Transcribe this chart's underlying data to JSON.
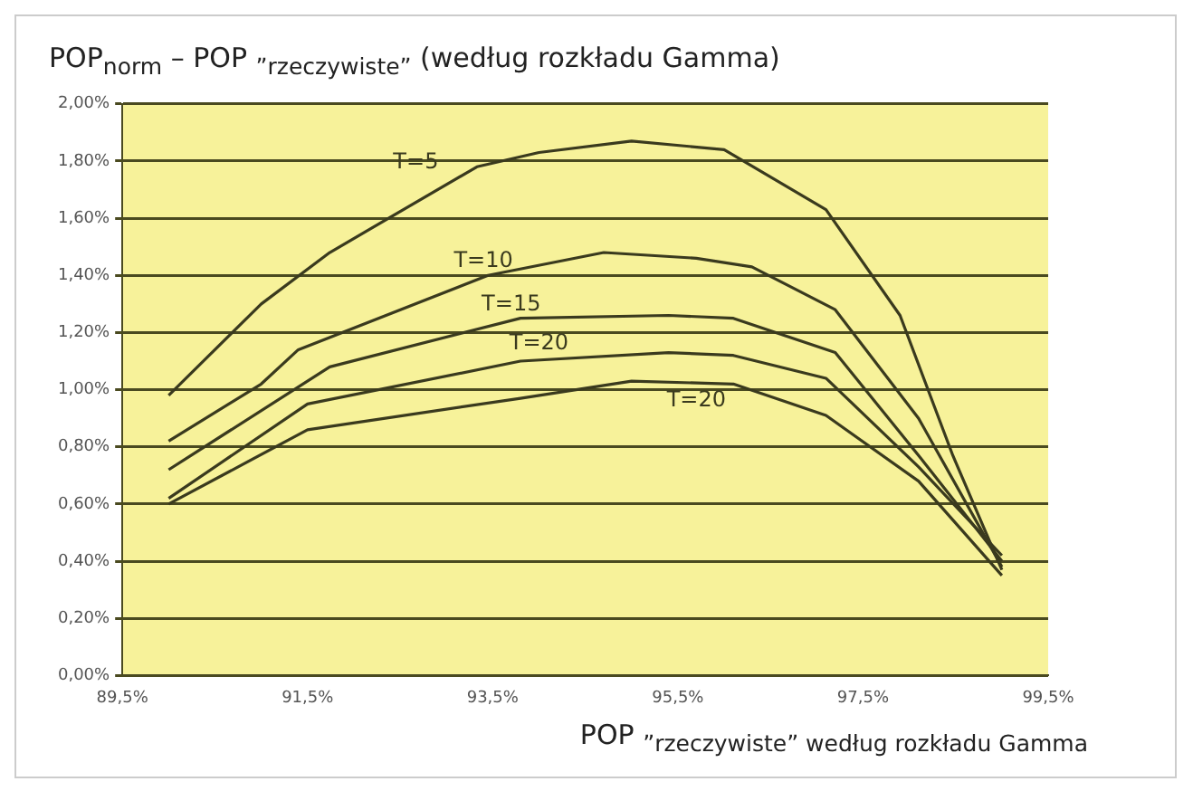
{
  "chart_data": {
    "type": "line",
    "title": "POP$_{norm}$ – POP $_{”rzeczywiste”}$ (według rozkładu Gamma)",
    "xlabel": "POP $_{”rzeczywiste” według rozkładu Gamma}$",
    "xlim": [
      89.5,
      99.5
    ],
    "xticks": [
      {
        "value": 89.5,
        "label": "89,5%"
      },
      {
        "value": 91.5,
        "label": "91,5%"
      },
      {
        "value": 93.5,
        "label": "93,5%"
      },
      {
        "value": 95.5,
        "label": "95,5%"
      },
      {
        "value": 97.5,
        "label": "97,5%"
      },
      {
        "value": 99.5,
        "label": "99,5%"
      }
    ],
    "ylim": [
      0,
      2
    ],
    "yticks": [
      {
        "value": 0,
        "label": "0,00%"
      },
      {
        "value": 0.2,
        "label": "0,20%"
      },
      {
        "value": 0.4,
        "label": "0,40%"
      },
      {
        "value": 0.6,
        "label": "0,60%"
      },
      {
        "value": 0.8,
        "label": "0,80%"
      },
      {
        "value": 1,
        "label": "1,00%"
      },
      {
        "value": 1.2,
        "label": "1,20%"
      },
      {
        "value": 1.4,
        "label": "1,40%"
      },
      {
        "value": 1.6,
        "label": "1,60%"
      },
      {
        "value": 1.8,
        "label": "1,80%"
      },
      {
        "value": 2,
        "label": "2,00%"
      }
    ],
    "grid": "y",
    "legend": false,
    "marker": "none",
    "line_style": "solid",
    "series": [
      {
        "name": "T=5",
        "color": "#3a3a1e",
        "x": [
          90.0,
          91.0,
          91.74,
          93.33,
          94.0,
          95.0,
          96.0,
          97.1,
          97.9,
          98.47,
          99.0
        ],
        "values": [
          0.98,
          1.3,
          1.48,
          1.78,
          1.83,
          1.87,
          1.84,
          1.63,
          1.26,
          0.77,
          0.37
        ]
      },
      {
        "name": "T=10",
        "color": "#3a3a1e",
        "x": [
          90.0,
          91.0,
          91.4,
          93.45,
          94.7,
          95.7,
          96.3,
          97.2,
          98.1,
          99.0
        ],
        "values": [
          0.82,
          1.02,
          1.14,
          1.4,
          1.48,
          1.46,
          1.43,
          1.28,
          0.9,
          0.38
        ]
      },
      {
        "name": "T=15",
        "color": "#3a3a1e",
        "x": [
          90.0,
          91.74,
          93.8,
          95.4,
          96.1,
          97.2,
          98.1,
          99.0
        ],
        "values": [
          0.72,
          1.08,
          1.25,
          1.26,
          1.25,
          1.13,
          0.77,
          0.4
        ]
      },
      {
        "name": "T=20",
        "color": "#3a3a1e",
        "x": [
          90.0,
          91.5,
          93.8,
          95.4,
          96.1,
          97.1,
          98.1,
          99.0
        ],
        "values": [
          0.62,
          0.95,
          1.1,
          1.13,
          1.12,
          1.04,
          0.73,
          0.42
        ]
      },
      {
        "name": "T=20",
        "color": "#3a3a1e",
        "x": [
          90.0,
          91.5,
          93.8,
          95.0,
          96.1,
          97.1,
          98.1,
          99.0
        ],
        "values": [
          0.6,
          0.86,
          0.97,
          1.03,
          1.02,
          0.91,
          0.68,
          0.35
        ]
      }
    ]
  }
}
